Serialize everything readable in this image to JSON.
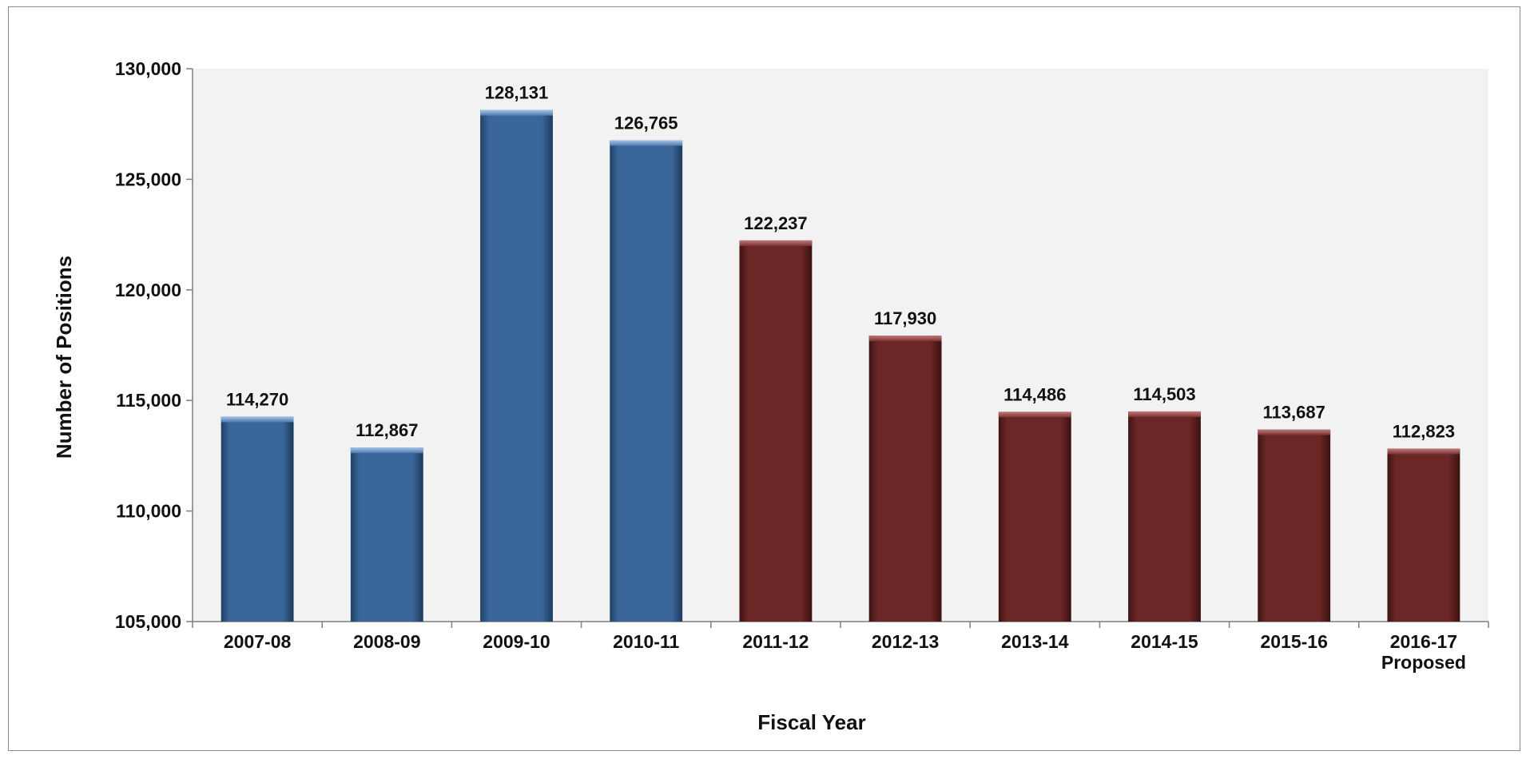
{
  "chart_data": {
    "type": "bar",
    "title": "",
    "xlabel": "Fiscal Year",
    "ylabel": "Number of Positions",
    "ylim": [
      105000,
      130000
    ],
    "yticks": [
      105000,
      110000,
      115000,
      120000,
      125000,
      130000
    ],
    "ytick_labels": [
      "105,000",
      "110,000",
      "115,000",
      "120,000",
      "125,000",
      "130,000"
    ],
    "categories": [
      "2007-08",
      "2008-09",
      "2009-10",
      "2010-11",
      "2011-12",
      "2012-13",
      "2013-14",
      "2014-15",
      "2015-16",
      "2016-17"
    ],
    "category_sublabels": [
      "",
      "",
      "",
      "",
      "",
      "",
      "",
      "",
      "",
      "Proposed"
    ],
    "values": [
      114270,
      112867,
      128131,
      126765,
      122237,
      117930,
      114486,
      114503,
      113687,
      112823
    ],
    "value_labels": [
      "114,270",
      "112,867",
      "128,131",
      "126,765",
      "122,237",
      "117,930",
      "114,486",
      "114,503",
      "113,687",
      "112,823"
    ],
    "bar_colors": [
      "#3b6699",
      "#3b6699",
      "#3b6699",
      "#3b6699",
      "#6b2626",
      "#6b2626",
      "#6b2626",
      "#6b2626",
      "#6b2626",
      "#6b2626"
    ],
    "plot_background": "#f2f2f2",
    "grid": false,
    "legend": "none"
  }
}
